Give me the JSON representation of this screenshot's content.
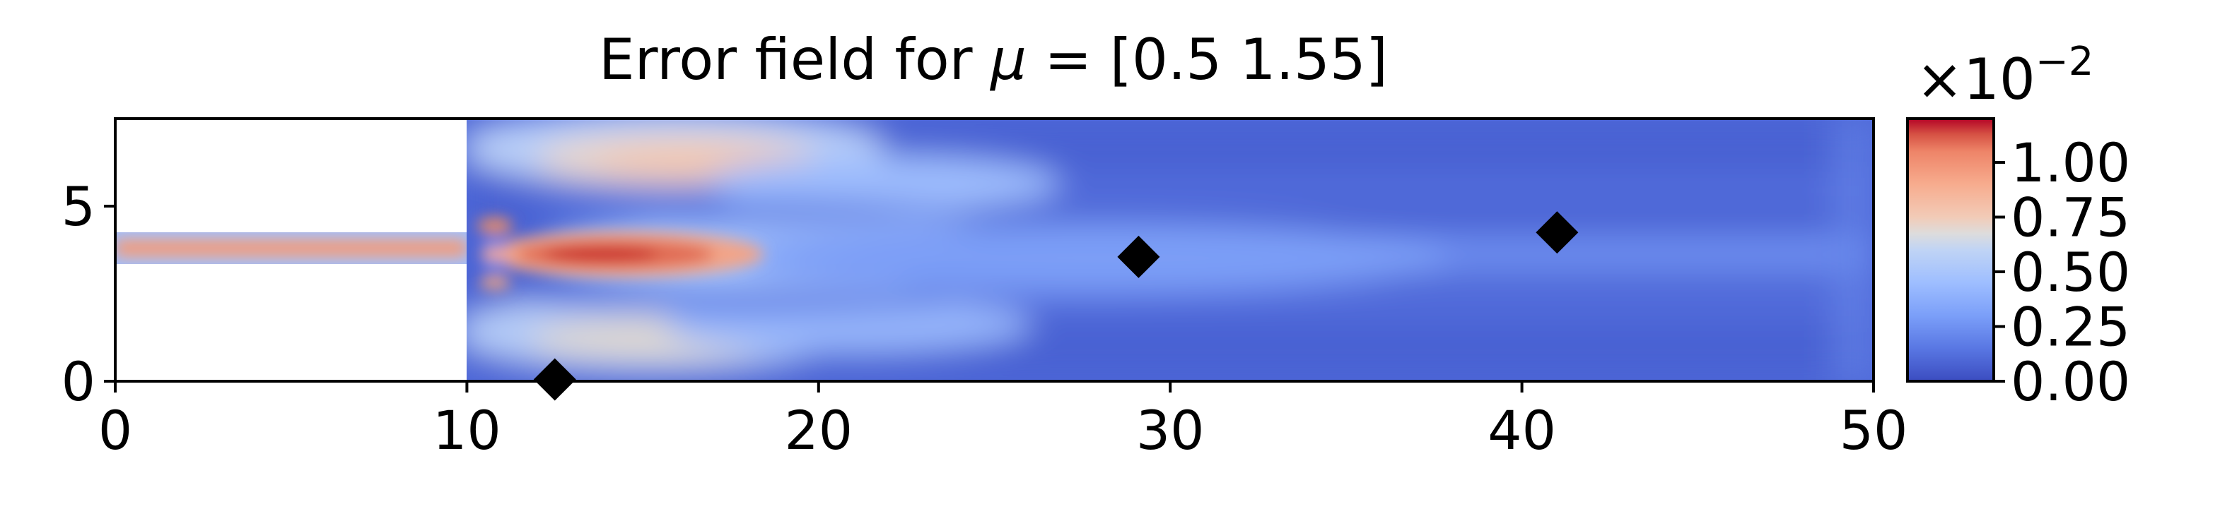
{
  "chart_data": [
    {
      "type": "heatmap",
      "title": "Error field for μ = [0.5  1.55]",
      "title_prefix": "Error field for ",
      "title_symbol": "μ",
      "title_suffix": " = [0.5  1.55]",
      "xlabel": "",
      "ylabel": "",
      "xlim": [
        0,
        50
      ],
      "ylim": [
        0,
        7.5
      ],
      "x_ticks": [
        0,
        10,
        20,
        30,
        40,
        50
      ],
      "x_tick_labels": [
        "0",
        "10",
        "20",
        "30",
        "40",
        "50"
      ],
      "y_ticks": [
        0,
        5
      ],
      "y_tick_labels": [
        "0",
        "5"
      ],
      "colormap": "coolwarm",
      "domain": {
        "inlet_channel": {
          "x": [
            0,
            10
          ],
          "y": [
            3.3,
            4.2
          ]
        },
        "main_channel": {
          "x": [
            10,
            50
          ],
          "y": [
            0,
            7.5
          ]
        }
      },
      "field_features": [
        {
          "description_value": "jet core",
          "x_range": [
            10,
            18
          ],
          "y_center": 3.7,
          "max_value": 1.15
        },
        {
          "description_value": "inlet channel",
          "x_range": [
            0,
            10
          ],
          "y_center": 3.7,
          "value": 0.85
        },
        {
          "description_value": "upper shear layer",
          "x_range": [
            12,
            24
          ],
          "y_center": 6.4,
          "value": 0.6
        },
        {
          "description_value": "lower shear layer",
          "x_range": [
            12,
            23
          ],
          "y_center": 1.3,
          "value": 0.5
        }
      ],
      "markers": {
        "shape": "diamond",
        "color": "#000000",
        "points": [
          {
            "x": 12.5,
            "y": 0.05
          },
          {
            "x": 29.1,
            "y": 3.55
          },
          {
            "x": 41.0,
            "y": 4.25
          }
        ]
      },
      "grid": false
    },
    {
      "type": "colorbar",
      "colormap": "coolwarm",
      "range": [
        0,
        1.2
      ],
      "ticks": [
        0.0,
        0.25,
        0.5,
        0.75,
        1.0
      ],
      "tick_labels": [
        "0.00",
        "0.25",
        "0.50",
        "0.75",
        "1.00"
      ],
      "offset_prefix": "×10",
      "offset_exponent": "−2"
    }
  ],
  "colors": {
    "cold": "#3b4cc0",
    "mid": "#dddddd",
    "warm": "#b40426"
  }
}
